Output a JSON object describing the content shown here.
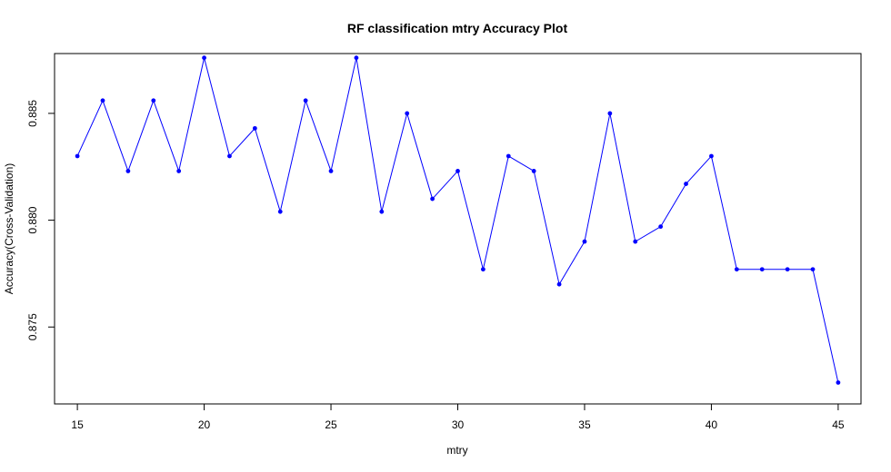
{
  "chart_data": {
    "type": "line",
    "title": "RF classification mtry Accuracy Plot",
    "xlabel": "mtry",
    "ylabel": "Accuracy(Cross-Validation)",
    "xlim": [
      14.1,
      45.9
    ],
    "ylim": [
      0.8714,
      0.8878
    ],
    "xticks": [
      15,
      20,
      25,
      30,
      35,
      40,
      45
    ],
    "yticks": [
      0.875,
      0.88,
      0.885
    ],
    "ytick_labels": [
      "0.875",
      "0.880",
      "0.885"
    ],
    "grid": false,
    "series": [
      {
        "line_color": "#0000ff",
        "marker": "point",
        "x": [
          15,
          16,
          17,
          18,
          19,
          20,
          21,
          22,
          23,
          24,
          25,
          26,
          27,
          28,
          29,
          30,
          31,
          32,
          33,
          34,
          35,
          36,
          37,
          38,
          39,
          40,
          41,
          42,
          43,
          44,
          45
        ],
        "y": [
          0.883,
          0.8856,
          0.8823,
          0.8856,
          0.8823,
          0.8876,
          0.883,
          0.8843,
          0.8804,
          0.8856,
          0.8823,
          0.8876,
          0.8804,
          0.885,
          0.881,
          0.8823,
          0.8777,
          0.883,
          0.8823,
          0.877,
          0.879,
          0.885,
          0.879,
          0.8797,
          0.8817,
          0.883,
          0.8777,
          0.8777,
          0.8777,
          0.8777,
          0.8724
        ]
      }
    ]
  }
}
